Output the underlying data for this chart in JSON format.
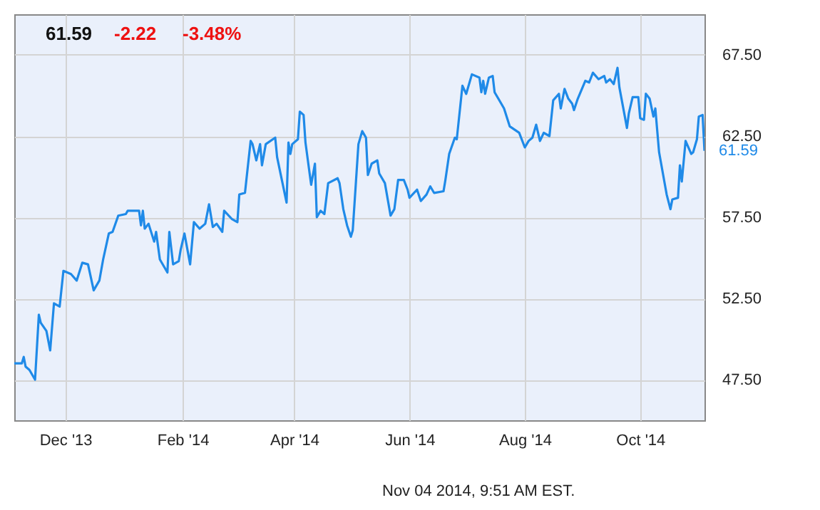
{
  "chart_data": {
    "type": "line",
    "title": "61.59",
    "annotations": [
      "-2.22",
      "-3.48%",
      {
        "text": "61.59",
        "x": "2014-11-04",
        "y": 61.59
      },
      "Nov 04 2014, 9:51 AM EST."
    ],
    "x": [
      "2013-11-04",
      "2013-11-08",
      "2013-11-09",
      "2013-11-10",
      "2013-11-12",
      "2013-11-15",
      "2013-11-17",
      "2013-11-18",
      "2013-11-21",
      "2013-11-23",
      "2013-11-25",
      "2013-11-28",
      "2013-11-30",
      "2013-12-04",
      "2013-12-07",
      "2013-12-10",
      "2013-12-13",
      "2013-12-16",
      "2013-12-19",
      "2013-12-21",
      "2013-12-24",
      "2013-12-26",
      "2013-12-29",
      "2014-01-02",
      "2014-01-03",
      "2014-01-09",
      "2014-01-10",
      "2014-01-11",
      "2014-01-12",
      "2014-01-14",
      "2014-01-17",
      "2014-01-18",
      "2014-01-20",
      "2014-01-24",
      "2014-01-25",
      "2014-01-27",
      "2014-01-30",
      "2014-01-31",
      "2014-02-02",
      "2014-02-05",
      "2014-02-07",
      "2014-02-10",
      "2014-02-13",
      "2014-02-15",
      "2014-02-17",
      "2014-02-19",
      "2014-02-22",
      "2014-02-23",
      "2014-02-27",
      "2014-03-02",
      "2014-03-03",
      "2014-03-06",
      "2014-03-09",
      "2014-03-10",
      "2014-03-12",
      "2014-03-14",
      "2014-03-15",
      "2014-03-17",
      "2014-03-22",
      "2014-03-23",
      "2014-03-28",
      "2014-03-29",
      "2014-03-30",
      "2014-03-31",
      "2014-04-03",
      "2014-04-04",
      "2014-04-06",
      "2014-04-07",
      "2014-04-10",
      "2014-04-12",
      "2014-04-13",
      "2014-04-15",
      "2014-04-17",
      "2014-04-19",
      "2014-04-24",
      "2014-04-25",
      "2014-04-27",
      "2014-04-29",
      "2014-05-01",
      "2014-05-02",
      "2014-05-05",
      "2014-05-07",
      "2014-05-09",
      "2014-05-10",
      "2014-05-12",
      "2014-05-15",
      "2014-05-16",
      "2014-05-19",
      "2014-05-22",
      "2014-05-24",
      "2014-05-26",
      "2014-05-29",
      "2014-05-31",
      "2014-06-01",
      "2014-06-05",
      "2014-06-07",
      "2014-06-10",
      "2014-06-12",
      "2014-06-14",
      "2014-06-19",
      "2014-06-20",
      "2014-06-22",
      "2014-06-25",
      "2014-06-26",
      "2014-06-29",
      "2014-07-01",
      "2014-07-04",
      "2014-07-08",
      "2014-07-09",
      "2014-07-10",
      "2014-07-11",
      "2014-07-13",
      "2014-07-15",
      "2014-07-16",
      "2014-07-18",
      "2014-07-21",
      "2014-07-24",
      "2014-07-29",
      "2014-08-01",
      "2014-08-03",
      "2014-08-05",
      "2014-08-07",
      "2014-08-09",
      "2014-08-11",
      "2014-08-14",
      "2014-08-16",
      "2014-08-19",
      "2014-08-20",
      "2014-08-22",
      "2014-08-24",
      "2014-08-26",
      "2014-08-27",
      "2014-08-29",
      "2014-09-02",
      "2014-09-04",
      "2014-09-06",
      "2014-09-09",
      "2014-09-12",
      "2014-09-13",
      "2014-09-15",
      "2014-09-17",
      "2014-09-19",
      "2014-09-20",
      "2014-09-24",
      "2014-09-25",
      "2014-09-27",
      "2014-09-30",
      "2014-10-01",
      "2014-10-03",
      "2014-10-04",
      "2014-10-06",
      "2014-10-08",
      "2014-10-09",
      "2014-10-11",
      "2014-10-15",
      "2014-10-17",
      "2014-10-18",
      "2014-10-21",
      "2014-10-22",
      "2014-10-23",
      "2014-10-25",
      "2014-10-28",
      "2014-10-29",
      "2014-10-31",
      "2014-11-01",
      "2014-11-03",
      "2014-11-04"
    ],
    "series": [
      {
        "color": "#1f8ae8",
        "values": [
          48.5,
          48.5,
          48.9,
          48.3,
          48.1,
          47.5,
          51.5,
          51.0,
          50.5,
          49.3,
          52.2,
          52.0,
          54.2,
          54.0,
          53.6,
          54.7,
          54.6,
          53.0,
          53.6,
          54.9,
          56.5,
          56.6,
          57.6,
          57.7,
          57.9,
          57.9,
          57.0,
          57.9,
          56.8,
          57.1,
          56.0,
          56.6,
          54.9,
          54.1,
          56.6,
          54.6,
          54.8,
          55.5,
          56.5,
          54.6,
          57.2,
          56.8,
          57.1,
          58.3,
          56.9,
          57.1,
          56.6,
          57.9,
          57.4,
          57.2,
          58.9,
          59.0,
          62.2,
          62.0,
          61.0,
          62.0,
          60.7,
          62.0,
          62.4,
          61.2,
          58.4,
          62.1,
          61.4,
          62.0,
          62.3,
          64.0,
          63.8,
          62.1,
          59.5,
          60.8,
          57.5,
          57.9,
          57.7,
          59.6,
          59.9,
          59.6,
          58.0,
          57.0,
          56.3,
          56.7,
          62.0,
          62.8,
          62.4,
          60.1,
          60.8,
          61.0,
          60.2,
          59.6,
          57.6,
          58.0,
          59.8,
          59.8,
          59.2,
          58.7,
          59.2,
          58.5,
          58.9,
          59.4,
          59.0,
          59.1,
          59.8,
          61.4,
          62.4,
          62.3,
          65.6,
          65.1,
          66.3,
          66.1,
          65.2,
          65.9,
          65.1,
          66.1,
          66.2,
          65.2,
          64.8,
          64.2,
          63.1,
          62.7,
          61.8,
          62.2,
          62.4,
          63.2,
          62.2,
          62.7,
          62.5,
          64.7,
          65.1,
          64.2,
          65.4,
          64.8,
          64.5,
          64.1,
          64.8,
          65.9,
          65.8,
          66.4,
          66.0,
          66.2,
          65.8,
          66.0,
          65.7,
          66.7,
          65.5,
          63.0,
          63.9,
          64.9,
          64.9,
          63.6,
          63.5,
          65.1,
          64.8,
          63.7,
          64.2,
          61.5,
          58.9,
          58.0,
          58.6,
          58.7,
          60.7,
          59.7,
          62.2,
          61.4,
          61.5,
          62.3,
          63.7,
          63.8,
          61.59
        ]
      }
    ],
    "xlim": [
      "2013-11-04",
      "2014-11-04"
    ],
    "xticks": [
      {
        "value": "2013-12-01",
        "label": "Dec '13"
      },
      {
        "value": "2014-02-01",
        "label": "Feb '14"
      },
      {
        "value": "2014-04-01",
        "label": "Apr '14"
      },
      {
        "value": "2014-06-01",
        "label": "Jun '14"
      },
      {
        "value": "2014-08-01",
        "label": "Aug '14"
      },
      {
        "value": "2014-10-01",
        "label": "Oct '14"
      }
    ],
    "ylim": [
      45,
      70
    ],
    "yticks": [
      {
        "value": 47.5,
        "label": "47.50"
      },
      {
        "value": 52.5,
        "label": "52.50"
      },
      {
        "value": 57.5,
        "label": "57.50"
      },
      {
        "value": 62.5,
        "label": "62.50"
      },
      {
        "value": 67.5,
        "label": "67.50"
      }
    ],
    "grid": true
  }
}
